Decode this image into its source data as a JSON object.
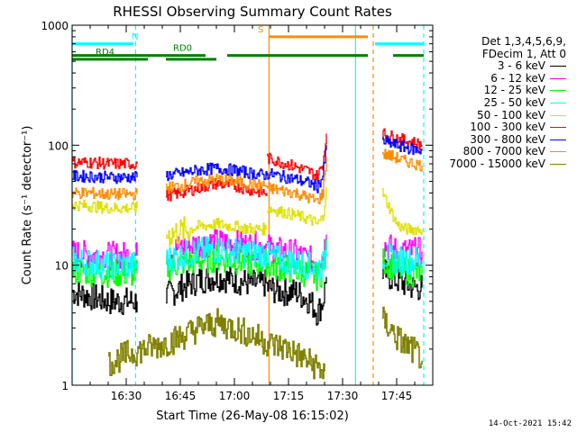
{
  "chart_data": {
    "type": "line",
    "title": "RHESSI Observing Summary Count Rates",
    "xlabel": "Start Time (26-May-08 16:15:02)",
    "ylabel": "Count Rate (s⁻¹ detector⁻¹)",
    "y_scale": "log",
    "ylim": [
      1,
      1000
    ],
    "xlim_minutes_after_16_15": [
      0,
      100
    ],
    "x_ticks": [
      "16:30",
      "16:45",
      "17:00",
      "17:15",
      "17:30",
      "17:45"
    ],
    "y_ticks": [
      "1",
      "10",
      "100",
      "1000"
    ],
    "legend_header": [
      "Det 1,3,4,5,6,9,",
      "FDecim 1, Att 0"
    ],
    "series": [
      {
        "name": "3 - 6 keV",
        "color": "#000000",
        "segments": [
          {
            "x": [
              0,
              5,
              10,
              15,
              18
            ],
            "y": [
              6,
              5.5,
              5,
              5,
              5
            ]
          },
          {
            "x": [
              26,
              30,
              35,
              40,
              45,
              50,
              54
            ],
            "y": [
              5.5,
              6.5,
              7.5,
              8,
              7.5,
              7,
              7
            ]
          },
          {
            "x": [
              54,
              58,
              62,
              66,
              68,
              69.5,
              70.5
            ],
            "y": [
              6.5,
              6,
              6,
              5,
              4,
              5,
              8
            ]
          },
          {
            "x": [
              86,
              88,
              90,
              92,
              95,
              97
            ],
            "y": [
              9,
              8,
              7.5,
              7,
              6.5,
              6.5
            ]
          }
        ]
      },
      {
        "name": "6 - 12 keV",
        "color": "#ff00ff",
        "segments": [
          {
            "x": [
              0,
              5,
              10,
              15,
              18
            ],
            "y": [
              12.5,
              12.2,
              12,
              12,
              12
            ]
          },
          {
            "x": [
              26,
              30,
              35,
              40,
              45,
              50,
              54
            ],
            "y": [
              13,
              14,
              15,
              15.5,
              15,
              14.5,
              14.5
            ]
          },
          {
            "x": [
              54,
              58,
              62,
              66,
              68,
              69.5,
              70.5
            ],
            "y": [
              14,
              13,
              12.5,
              11,
              11,
              12,
              18
            ]
          },
          {
            "x": [
              86,
              88,
              90,
              92,
              95,
              97
            ],
            "y": [
              15,
              14,
              13,
              13,
              13,
              13
            ]
          }
        ]
      },
      {
        "name": "12 - 25 keV",
        "color": "#00ff00",
        "segments": [
          {
            "x": [
              0,
              5,
              10,
              15,
              18
            ],
            "y": [
              9,
              8.8,
              8.6,
              8.5,
              8.5
            ]
          },
          {
            "x": [
              26,
              30,
              35,
              40,
              45,
              50,
              54
            ],
            "y": [
              9.5,
              10.5,
              11,
              11.5,
              11,
              10.5,
              10.5
            ]
          },
          {
            "x": [
              54,
              58,
              62,
              66,
              68,
              69.5,
              70.5
            ],
            "y": [
              10,
              9.5,
              9,
              8.5,
              8,
              9,
              14
            ]
          },
          {
            "x": [
              86,
              88,
              90,
              92,
              95,
              97
            ],
            "y": [
              11,
              10,
              9.5,
              9,
              8.5,
              8.5
            ]
          }
        ]
      },
      {
        "name": "25 - 50 keV",
        "color": "#00ffff",
        "segments": [
          {
            "x": [
              0,
              5,
              10,
              15,
              18
            ],
            "y": [
              11,
              10.5,
              10,
              10,
              10
            ]
          },
          {
            "x": [
              26,
              30,
              35,
              40,
              45,
              50,
              54
            ],
            "y": [
              11,
              12,
              13,
              13.5,
              13,
              12.5,
              12.5
            ]
          },
          {
            "x": [
              54,
              58,
              62,
              66,
              68,
              69.5,
              70.5
            ],
            "y": [
              12,
              11,
              10.5,
              10,
              9.5,
              10,
              16
            ]
          },
          {
            "x": [
              86,
              88,
              90,
              92,
              95,
              97
            ],
            "y": [
              12,
              11.5,
              11,
              11,
              11,
              11
            ]
          }
        ]
      },
      {
        "name": "50 - 100 keV",
        "color": "#e0e000",
        "segments": [
          {
            "x": [
              0,
              5,
              10,
              15,
              18
            ],
            "y": [
              32,
              31,
              30,
              30,
              30
            ]
          },
          {
            "x": [
              26,
              30,
              35,
              40,
              45,
              50,
              54
            ],
            "y": [
              18,
              19,
              21,
              22,
              21,
              20,
              20
            ]
          },
          {
            "x": [
              54,
              58,
              62,
              66,
              68,
              69.5,
              70.5
            ],
            "y": [
              30,
              28,
              26,
              24,
              22,
              25,
              45
            ]
          },
          {
            "x": [
              86,
              88,
              90,
              92,
              95,
              97
            ],
            "y": [
              40,
              30,
              22,
              20,
              20,
              20
            ]
          }
        ]
      },
      {
        "name": "100 - 300 keV",
        "color": "#ff0000",
        "segments": [
          {
            "x": [
              0,
              5,
              10,
              15,
              18
            ],
            "y": [
              72,
              72,
              70,
              70,
              70
            ]
          },
          {
            "x": [
              26,
              30,
              35,
              40,
              45,
              50,
              54
            ],
            "y": [
              38,
              40,
              44,
              48,
              46,
              42,
              40
            ]
          },
          {
            "x": [
              54,
              58,
              62,
              66,
              68,
              69.5,
              70.5
            ],
            "y": [
              78,
              72,
              66,
              60,
              55,
              70,
              125
            ]
          },
          {
            "x": [
              86,
              88,
              90,
              92,
              95,
              97
            ],
            "y": [
              125,
              120,
              115,
              110,
              105,
              100
            ]
          }
        ]
      },
      {
        "name": "300 - 800 keV",
        "color": "#0000ff",
        "segments": [
          {
            "x": [
              0,
              5,
              10,
              15,
              18
            ],
            "y": [
              55,
              55,
              54,
              54,
              54
            ]
          },
          {
            "x": [
              26,
              30,
              35,
              40,
              45,
              50,
              54
            ],
            "y": [
              56,
              58,
              62,
              64,
              62,
              58,
              56
            ]
          },
          {
            "x": [
              54,
              58,
              62,
              66,
              68,
              69.5,
              70.5
            ],
            "y": [
              58,
              55,
              52,
              48,
              45,
              55,
              100
            ]
          },
          {
            "x": [
              86,
              88,
              90,
              92,
              95,
              97
            ],
            "y": [
              108,
              104,
              100,
              96,
              92,
              90
            ]
          }
        ]
      },
      {
        "name": "800 - 7000 keV",
        "color": "#ff8c00",
        "segments": [
          {
            "x": [
              0,
              5,
              10,
              15,
              18
            ],
            "y": [
              40,
              40,
              39,
              39,
              39
            ]
          },
          {
            "x": [
              26,
              30,
              35,
              40,
              45,
              50,
              54
            ],
            "y": [
              44,
              46,
              50,
              52,
              50,
              47,
              46
            ]
          },
          {
            "x": [
              54,
              58,
              62,
              66,
              68,
              69.5,
              70.5
            ],
            "y": [
              44,
              42,
              40,
              36,
              34,
              40,
              80
            ]
          },
          {
            "x": [
              86,
              88,
              90,
              92,
              95,
              97
            ],
            "y": [
              85,
              82,
              78,
              74,
              70,
              68
            ]
          }
        ]
      },
      {
        "name": "7000 - 15000 keV",
        "color": "#808000",
        "segments": [
          {
            "x": [
              10,
              15,
              20,
              25,
              30,
              35,
              40,
              45,
              50,
              55,
              60,
              65,
              70
            ],
            "y": [
              1.5,
              1.8,
              2.0,
              2.2,
              2.5,
              3.0,
              3.3,
              3.0,
              2.6,
              2.2,
              2.0,
              1.6,
              1.3
            ]
          },
          {
            "x": [
              86,
              88,
              90,
              92,
              94,
              96,
              97
            ],
            "y": [
              3.5,
              3.0,
              2.5,
              2.2,
              2.0,
              1.8,
              1.6
            ]
          }
        ]
      }
    ],
    "markers": [
      {
        "label": "N",
        "color": "#00ffff",
        "y": 700,
        "x_segments": [
          [
            0,
            17
          ],
          [
            84,
            97.5
          ]
        ]
      },
      {
        "label": "S",
        "color": "#ff8c00",
        "y": 800,
        "x_segments": [
          [
            54.5,
            82
          ]
        ]
      },
      {
        "label": "RD0",
        "color": "#008000",
        "y": 560,
        "x_segments": [
          [
            0,
            37
          ],
          [
            43,
            82
          ],
          [
            89,
            97.5
          ]
        ]
      },
      {
        "label": "RD4",
        "color": "#008000",
        "y": 520,
        "x_segments": [
          [
            0,
            21
          ],
          [
            26,
            40
          ]
        ]
      }
    ],
    "vertical_lines": [
      {
        "x": 0,
        "color": "#00ffff",
        "style": "solid"
      },
      {
        "x": 17.6,
        "color": "#00ffff",
        "style": "dashed"
      },
      {
        "x": 54.6,
        "color": "#ff8c00",
        "style": "solid"
      },
      {
        "x": 78.6,
        "color": "#00ffff",
        "style": "solid"
      },
      {
        "x": 83.5,
        "color": "#ff8c00",
        "style": "dashed"
      },
      {
        "x": 97.5,
        "color": "#00ffff",
        "style": "dashed"
      }
    ],
    "gaps": [
      [
        18,
        26
      ],
      [
        70.5,
        86
      ]
    ]
  },
  "timestamp": "14-Oct-2021 15:42"
}
